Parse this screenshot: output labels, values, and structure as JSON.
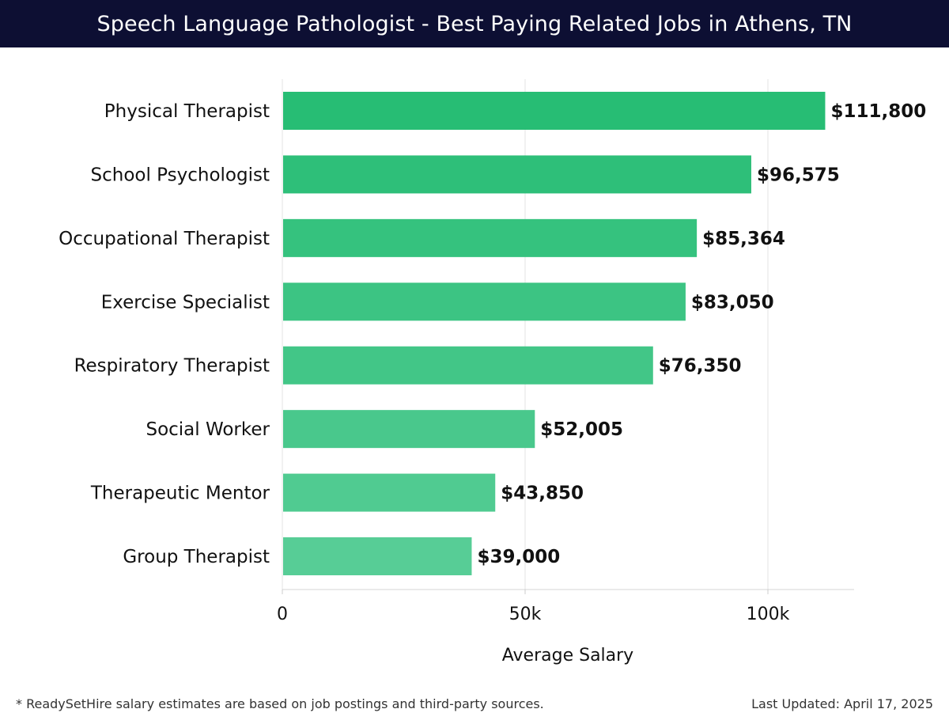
{
  "header": {
    "title": "Speech Language Pathologist - Best Paying Related Jobs in Athens, TN"
  },
  "footer": {
    "note": "* ReadySetHire salary estimates are based on job postings and third-party sources.",
    "updated": "Last Updated: April 17, 2025"
  },
  "colors": {
    "header_bg": "#0d0f33",
    "bar_top": "#27bd74",
    "bar_bottom": "#57cd96"
  },
  "chart_data": {
    "type": "bar",
    "orientation": "horizontal",
    "categories": [
      "Physical Therapist",
      "School Psychologist",
      "Occupational Therapist",
      "Exercise Specialist",
      "Respiratory Therapist",
      "Social Worker",
      "Therapeutic Mentor",
      "Group Therapist"
    ],
    "values": [
      111800,
      96575,
      85364,
      83050,
      76350,
      52005,
      43850,
      39000
    ],
    "data_labels": [
      "$111,800",
      "$96,575",
      "$85,364",
      "$83,050",
      "$76,350",
      "$52,005",
      "$43,850",
      "$39,000"
    ],
    "xlabel": "Average Salary",
    "ylabel": "",
    "xlim": [
      0,
      117500
    ],
    "xticks": [
      0,
      50000,
      100000
    ],
    "xtick_labels": [
      "0",
      "50k",
      "100k"
    ],
    "grid": true,
    "legend": "none"
  }
}
